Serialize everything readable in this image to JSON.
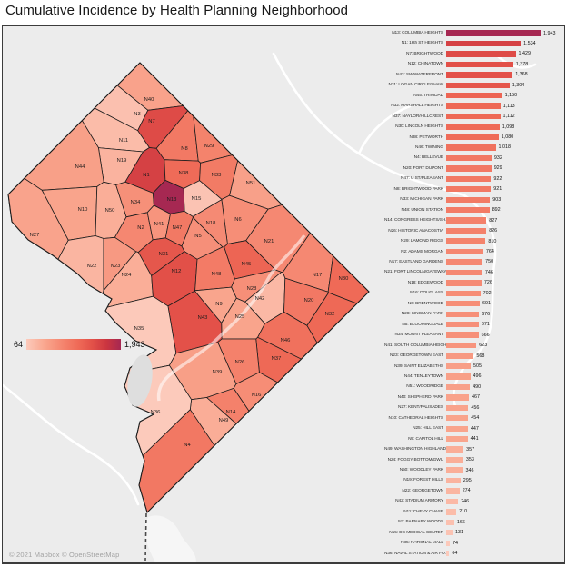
{
  "title": "Cumulative Incidence by Health Planning Neighborhood",
  "map": {
    "legend": {
      "min_label": "64",
      "max_label": "1,943"
    },
    "attribution": "© 2021 Mapbox © OpenStreetMap"
  },
  "chart_data": {
    "type": "bar",
    "orientation": "horizontal",
    "title": "Cumulative Incidence by Health Planning Neighborhood",
    "xlim": [
      0,
      1943
    ],
    "legend_min": 64,
    "legend_max": 1943,
    "color_scale": [
      "#fccabb",
      "#f9a58d",
      "#f4826c",
      "#ef6a57",
      "#e25048",
      "#cb3540",
      "#a62852"
    ],
    "categories": [
      "N13: COLUMBIA HEIGHTS",
      "N1: 16th ST HEIGHTS",
      "N7: BRIGHTWOOD",
      "N12: CHINATOWN",
      "N43: SW/WATERFRONT",
      "N31: LOGAN CIRCLE/SHAW",
      "N45: TRINIDAD",
      "N32: MARSHALL HEIGHTS",
      "N37: NAYLOR/HILLCREST",
      "N30: LINCOLN HEIGHTS",
      "N38: PETWORTH",
      "N46: TWINING",
      "N4: BELLEVUE",
      "N20: FORT DUPONT",
      "N47: U ST/PLEASANT",
      "N8: BRIGHTWOOD PARK",
      "N33: MICHIGAN PARK",
      "N48: UNION STATION",
      "N14: CONGRESS HEIGHTS/SH...",
      "N26: HISTORIC ANACOSTIA",
      "N29: LAMOND RIGGS",
      "N2: ADAMS MORGAN",
      "N17: EASTLAND GARDENS",
      "N21: FORT LINCOLN/GATEWAY",
      "N18: EDGEWOOD",
      "N16: DOUGLASS",
      "N6: BRENTWOOD",
      "N28: KINGMAN PARK",
      "N5: BLOOMINGDALE",
      "N34: MOUNT PLEASANT",
      "N41: SOUTH COLUMBIA HEIGHT...",
      "N23: GEORGETOWN EAST",
      "N39: SAINT ELIZABETHS",
      "N44: TENLEYTOWN",
      "N51: WOODRIDGE",
      "N40: SHEPHERD PARK",
      "N27: KENT/PALISADES",
      "N10: CATHEDRAL HEIGHTS",
      "N25: HILL EAST",
      "N9: CAPITOL HILL",
      "N49: WASHINGTON HIGHLANDS",
      "N24: FOGGY BOTTOM/GWU",
      "N50: WOODLEY PARK",
      "N19: FOREST HILLS",
      "N22: GEORGETOWN",
      "N42: STADIUM ARMORY",
      "N11: CHEVY CHASE",
      "N3: BARNABY WOODS",
      "N15: DC MEDICAL CENTER",
      "N35: NATIONAL MALL",
      "N36: NAVAL STATION & AIR FO..."
    ],
    "values": [
      1943,
      1534,
      1429,
      1378,
      1368,
      1304,
      1150,
      1113,
      1112,
      1098,
      1080,
      1018,
      932,
      929,
      922,
      921,
      903,
      892,
      827,
      826,
      810,
      764,
      750,
      746,
      726,
      702,
      691,
      676,
      671,
      666,
      623,
      568,
      505,
      496,
      490,
      467,
      456,
      454,
      447,
      441,
      357,
      353,
      346,
      295,
      274,
      246,
      210,
      166,
      131,
      74,
      64
    ]
  }
}
